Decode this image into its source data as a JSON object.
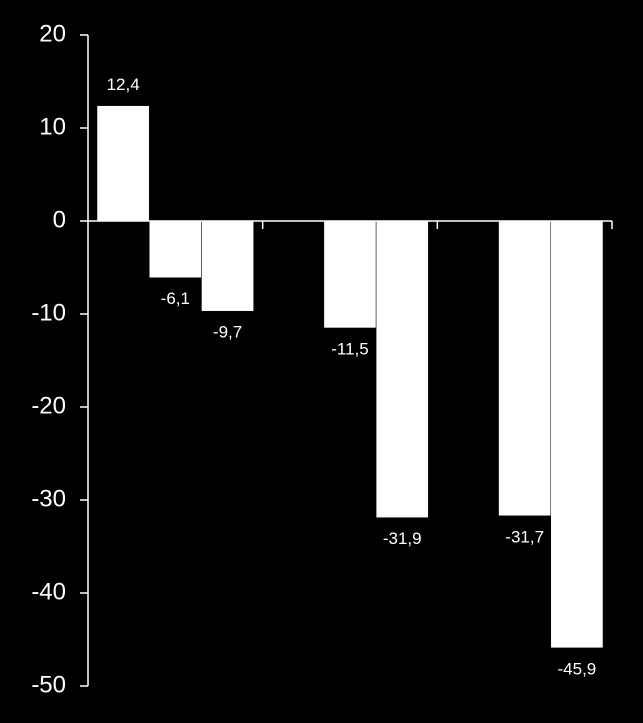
{
  "chart_data": {
    "type": "bar",
    "categories": [
      null,
      null,
      null
    ],
    "series": [
      {
        "color": "#ffffff",
        "values": [
          12.4,
          null,
          null
        ],
        "value_labels": [
          "12,4",
          null,
          null
        ]
      },
      {
        "color": "#ffffff",
        "values": [
          -6.1,
          -11.5,
          -31.7
        ],
        "value_labels": [
          "-6,1",
          "-11,5",
          "-31,7"
        ]
      },
      {
        "color": "#ffffff",
        "values": [
          -9.7,
          -31.9,
          -45.9
        ],
        "value_labels": [
          "-9,7",
          "-31,9",
          "-45,9"
        ]
      }
    ],
    "ylim": [
      -50,
      20
    ],
    "yticks": [
      -50,
      -40,
      -30,
      -20,
      -10,
      0,
      10,
      20
    ],
    "grid": false
  }
}
